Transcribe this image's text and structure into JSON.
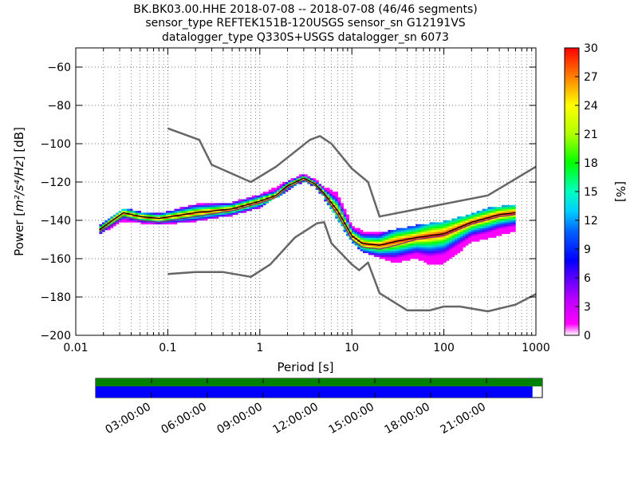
{
  "chart_data": {
    "type": "heatmap",
    "title_lines": [
      "BK.BK03.00.HHE   2018-07-08 -- 2018-07-08  (46/46 segments)",
      "sensor_type REFTEK151B-120USGS sensor_sn G12191VS",
      "datalogger_type Q330S+USGS datalogger_sn 6073"
    ],
    "xlabel": "Period [s]",
    "ylabel_parts": [
      "Power [",
      "m²/s⁴/Hz",
      "] [dB]"
    ],
    "xscale": "log",
    "xlim": [
      0.01,
      1000
    ],
    "ylim": [
      -200,
      -50
    ],
    "x_ticks": [
      0.01,
      0.1,
      1,
      10,
      100,
      1000
    ],
    "x_tick_labels": [
      "0.01",
      "0.1",
      "1",
      "10",
      "100",
      "1000"
    ],
    "y_ticks": [
      -60,
      -80,
      -100,
      -120,
      -140,
      -160,
      -180,
      -200
    ],
    "y_tick_labels": [
      "−60",
      "−80",
      "−100",
      "−120",
      "−140",
      "−160",
      "−180",
      "−200"
    ],
    "grid": true,
    "colorbar": {
      "label": "[%]",
      "range": [
        0,
        30
      ],
      "ticks": [
        0,
        3,
        6,
        9,
        12,
        15,
        18,
        21,
        24,
        27,
        30
      ],
      "tick_labels": [
        "0",
        "3",
        "6",
        "9",
        "12",
        "15",
        "18",
        "21",
        "24",
        "27",
        "30"
      ]
    },
    "series": [
      {
        "role": "upper_noise_model",
        "color": "#666666",
        "x": [
          0.1,
          0.22,
          0.3,
          0.8,
          1.5,
          3.5,
          4.5,
          6,
          10,
          15,
          20,
          300,
          1000
        ],
        "y": [
          -92,
          -98,
          -111,
          -120,
          -112,
          -98,
          -96,
          -100,
          -113,
          -120,
          -138,
          -127,
          -112
        ]
      },
      {
        "role": "lower_noise_model",
        "color": "#666666",
        "x": [
          0.1,
          0.2,
          0.4,
          0.8,
          1.3,
          2.4,
          4.2,
          5,
          6,
          10,
          12,
          15,
          20,
          40,
          70,
          100,
          150,
          300,
          600,
          1000
        ],
        "y": [
          -168,
          -167,
          -167,
          -169.5,
          -163,
          -149,
          -141.5,
          -141,
          -152,
          -163,
          -166,
          -162,
          -178,
          -187,
          -187,
          -185,
          -185,
          -187.5,
          -184,
          -178.5
        ]
      },
      {
        "role": "mode",
        "color": "#000000",
        "x": [
          0.018,
          0.025,
          0.033,
          0.05,
          0.08,
          0.2,
          0.5,
          1,
          1.5,
          2,
          3,
          4,
          5,
          7,
          10,
          13,
          20,
          30,
          50,
          100,
          200,
          400,
          600
        ],
        "y": [
          -145,
          -140,
          -136,
          -138,
          -139,
          -136,
          -134,
          -130,
          -127,
          -122,
          -118,
          -121,
          -126,
          -135,
          -148,
          -152,
          -153,
          -151,
          -149,
          -147,
          -141,
          -137,
          -136
        ]
      },
      {
        "role": "mean",
        "color": "#7a2a7a",
        "x": [
          0.018,
          0.025,
          0.033,
          0.05,
          0.08,
          0.2,
          0.5,
          1,
          1.5,
          2,
          3,
          4,
          5,
          7,
          10,
          13,
          20,
          30,
          50,
          100,
          200,
          400,
          600
        ],
        "y": [
          -146,
          -142,
          -138,
          -140,
          -141,
          -138,
          -135,
          -131,
          -128,
          -123,
          -119,
          -122,
          -127,
          -137,
          -150,
          -154,
          -155,
          -153,
          -150,
          -148,
          -142,
          -138,
          -137
        ]
      }
    ],
    "density_band": {
      "x": [
        0.018,
        0.025,
        0.033,
        0.05,
        0.08,
        0.2,
        0.5,
        1,
        2,
        3,
        4,
        5,
        7,
        10,
        13,
        20,
        30,
        50,
        70,
        100,
        200,
        300,
        600
      ],
      "y_low": [
        -148,
        -144,
        -141,
        -142,
        -143,
        -141,
        -138,
        -134,
        -125,
        -120,
        -123,
        -129,
        -140,
        -152,
        -157,
        -160,
        -163,
        -160,
        -164,
        -163,
        -152,
        -150,
        -146
      ],
      "y_high": [
        -143,
        -138,
        -134,
        -136,
        -137,
        -132,
        -131,
        -127,
        -120,
        -116,
        -119,
        -123,
        -126,
        -143,
        -146,
        -147,
        -145,
        -143,
        -142,
        -141,
        -137,
        -134,
        -132
      ]
    },
    "timeline": {
      "tick_labels": [
        "03:00:00",
        "06:00:00",
        "09:00:00",
        "12:00:00",
        "15:00:00",
        "18:00:00",
        "21:00:00"
      ],
      "data_color": "#008000",
      "psd_color": "#0000ff",
      "psd_coverage": 0.978
    }
  }
}
